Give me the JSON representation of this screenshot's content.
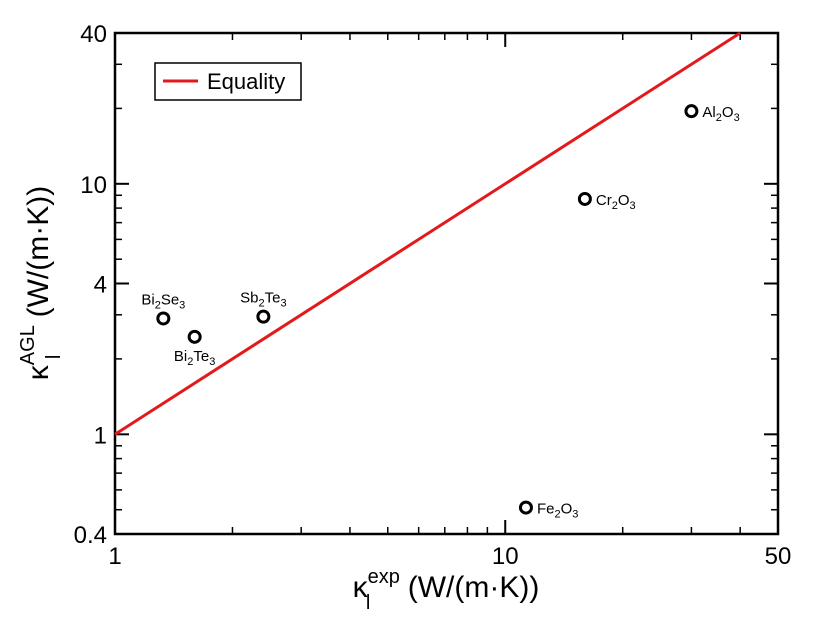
{
  "chart_data": {
    "type": "scatter",
    "title": "",
    "xlabel": {
      "symbol": "κ",
      "sub": "l",
      "sup": "exp",
      "unit": "(W/(m·K))"
    },
    "ylabel": {
      "symbol": "κ",
      "sub": "l",
      "sup": "AGL",
      "unit": "(W/(m·K))"
    },
    "xscale": "log",
    "yscale": "log",
    "xlim": [
      1,
      50
    ],
    "ylim": [
      0.4,
      40
    ],
    "xticks": [
      1,
      10,
      50
    ],
    "xtick_labels": [
      "1",
      "10",
      "50"
    ],
    "yticks": [
      0.4,
      1,
      4,
      10,
      40
    ],
    "ytick_labels": [
      "0.4",
      "1",
      "4",
      "10",
      "40"
    ],
    "grid": false,
    "legend": {
      "placement": "top-left",
      "entries": [
        "Equality"
      ]
    },
    "series": [
      {
        "name": "Equality",
        "kind": "line",
        "color": "#e31a1c",
        "x": [
          1,
          40
        ],
        "y": [
          1,
          40
        ]
      },
      {
        "kind": "scatter",
        "marker": "open-circle",
        "color": "#000000",
        "points": [
          {
            "x": 1.33,
            "y": 2.9,
            "label": {
              "base1": "Bi",
              "sub1": "2",
              "base2": "Se",
              "sub2": "3"
            },
            "label_pos": "above"
          },
          {
            "x": 1.6,
            "y": 2.45,
            "label": {
              "base1": "Bi",
              "sub1": "2",
              "base2": "Te",
              "sub2": "3"
            },
            "label_pos": "below"
          },
          {
            "x": 2.4,
            "y": 2.95,
            "label": {
              "base1": "Sb",
              "sub1": "2",
              "base2": "Te",
              "sub2": "3"
            },
            "label_pos": "above"
          },
          {
            "x": 16.0,
            "y": 8.7,
            "label": {
              "base1": "Cr",
              "sub1": "2",
              "base2": "O",
              "sub2": "3"
            },
            "label_pos": "right"
          },
          {
            "x": 30.0,
            "y": 19.5,
            "label": {
              "base1": "Al",
              "sub1": "2",
              "base2": "O",
              "sub2": "3"
            },
            "label_pos": "right"
          },
          {
            "x": 11.3,
            "y": 0.51,
            "label": {
              "base1": "Fe",
              "sub1": "2",
              "base2": "O",
              "sub2": "3"
            },
            "label_pos": "right"
          }
        ]
      }
    ]
  }
}
